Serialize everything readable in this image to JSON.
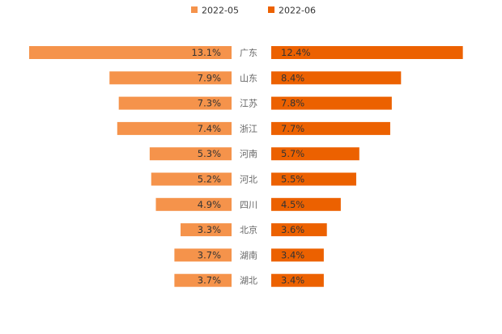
{
  "chart_data": {
    "type": "bar",
    "orientation": "horizontal-mirrored",
    "title": "",
    "xlabel": "",
    "ylabel": "",
    "legend_position": "top-center",
    "grid": false,
    "xlim": [
      0,
      13.1
    ],
    "categories": [
      "广东",
      "山东",
      "江苏",
      "浙江",
      "河南",
      "河北",
      "四川",
      "北京",
      "湖南",
      "湖北"
    ],
    "series": [
      {
        "name": "2022-05",
        "color": "#F5934B",
        "side": "left",
        "values": [
          13.1,
          7.9,
          7.3,
          7.4,
          5.3,
          5.2,
          4.9,
          3.3,
          3.7,
          3.7
        ],
        "labels": [
          "13.1%",
          "7.9%",
          "7.3%",
          "7.4%",
          "5.3%",
          "5.2%",
          "4.9%",
          "3.3%",
          "3.7%",
          "3.7%"
        ]
      },
      {
        "name": "2022-06",
        "color": "#EC6100",
        "side": "right",
        "values": [
          12.4,
          8.4,
          7.8,
          7.7,
          5.7,
          5.5,
          4.5,
          3.6,
          3.4,
          3.4
        ],
        "labels": [
          "12.4%",
          "8.4%",
          "7.8%",
          "7.7%",
          "5.7%",
          "5.5%",
          "4.5%",
          "3.6%",
          "3.4%",
          "3.4%"
        ]
      }
    ]
  }
}
